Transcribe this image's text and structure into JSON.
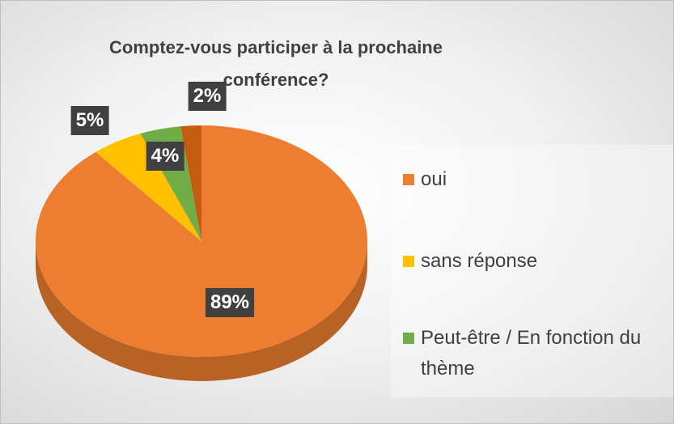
{
  "chart_data": {
    "type": "pie",
    "title": "Comptez-vous participer à la prochaine conférence?",
    "categories": [
      "oui",
      "sans réponse",
      "Peut-être / En fonction du thème",
      null
    ],
    "values": [
      89,
      5,
      4,
      2
    ],
    "value_labels": [
      "89%",
      "5%",
      "4%",
      "2%"
    ],
    "colors": [
      "#ED7D31",
      "#FFC000",
      "#70AD47",
      "#C55A11"
    ],
    "legend": "right"
  }
}
